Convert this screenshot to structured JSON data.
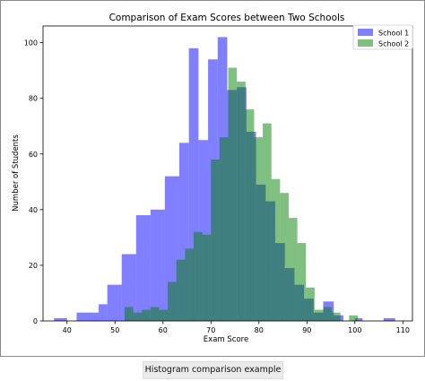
{
  "chart_data": {
    "type": "bar",
    "title": "Comparison of Exam Scores between Two Schools",
    "xlabel": "Exam Score",
    "ylabel": "Number of Students",
    "xlim": [
      35,
      112
    ],
    "ylim": [
      0,
      106
    ],
    "xticks": [
      40,
      50,
      60,
      70,
      80,
      90,
      100,
      110
    ],
    "yticks": [
      0,
      20,
      40,
      60,
      80,
      100
    ],
    "grid": false,
    "legend_position": "top-right",
    "series": [
      {
        "name": "School 1",
        "color": "#0000ff",
        "opacity": 0.5,
        "bin_edges": [
          37.3,
          40.0,
          42.0,
          46.6,
          48.4,
          51.4,
          54.4,
          57.4,
          60.4,
          63.4,
          65.4,
          67.4,
          69.4,
          71.4,
          73.4,
          75.4,
          77.4,
          79.4,
          81.4,
          83.4,
          85.4,
          87.4,
          89.4,
          91.4,
          93.4,
          95.6,
          97.6,
          100.0,
          101.6,
          106.0,
          108.4
        ],
        "counts": [
          1,
          0,
          3,
          6,
          13,
          24,
          38,
          40,
          52,
          64,
          98,
          65,
          94,
          102,
          83,
          84,
          68,
          49,
          43,
          28,
          19,
          13,
          8,
          3,
          7,
          2,
          0,
          1,
          0,
          1
        ]
      },
      {
        "name": "School 2",
        "color": "#008000",
        "opacity": 0.5,
        "bin_edges": [
          52.0,
          53.8,
          55.6,
          57.4,
          59.2,
          61.0,
          62.8,
          64.6,
          66.4,
          68.2,
          70.0,
          71.8,
          73.6,
          75.4,
          77.2,
          79.0,
          80.8,
          82.6,
          84.4,
          86.2,
          88.0,
          89.8,
          91.6,
          93.4,
          95.2,
          97.0,
          98.8,
          100.6
        ],
        "counts": [
          5,
          3,
          4,
          5,
          4,
          14,
          22,
          26,
          32,
          31,
          58,
          66,
          91,
          86,
          76,
          66,
          71,
          51,
          46,
          37,
          28,
          12,
          4,
          5,
          3,
          0,
          2
        ]
      }
    ]
  },
  "caption": "Histogram comparison example"
}
